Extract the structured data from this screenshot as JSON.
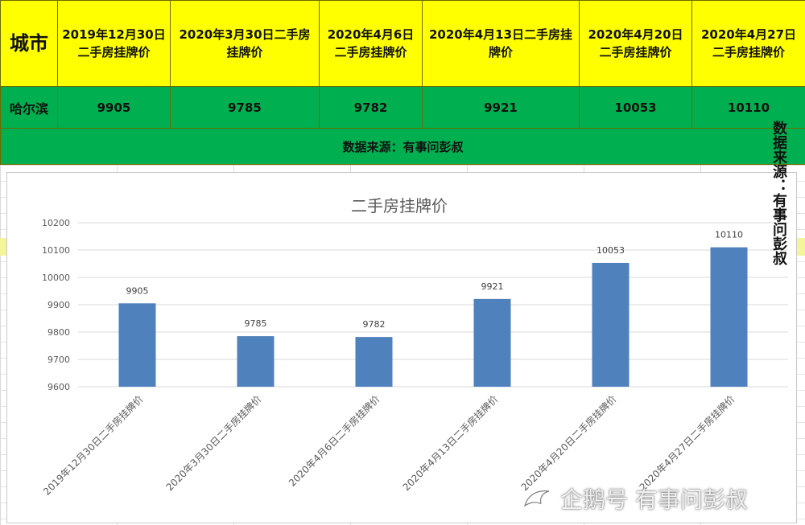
{
  "table": {
    "city_header": "城市",
    "date_headers": [
      "2019年12月30日二手房挂牌价",
      "2020年3月30日二手房挂牌价",
      "2020年4月6日二手房挂牌价",
      "2020年4月13日二手房挂牌价",
      "2020年4月20日二手房挂牌价",
      "2020年4月27日二手房挂牌价"
    ],
    "city": "哈尔滨",
    "prices": [
      "9905",
      "9785",
      "9782",
      "9921",
      "10053",
      "10110"
    ],
    "source": "数据来源：有事问彭叔"
  },
  "side_note": "数据来源：有事问彭叔",
  "watermark": "企鹅号 有事问彭叔",
  "colors": {
    "header_bg": "#ffff00",
    "row_bg": "#00b050",
    "bar": "#4f81bd"
  },
  "chart_data": {
    "type": "bar",
    "title": "二手房挂牌价",
    "categories": [
      "2019年12月30日二手房挂牌价",
      "2020年3月30日二手房挂牌价",
      "2020年4月6日二手房挂牌价",
      "2020年4月13日二手房挂牌价",
      "2020年4月20日二手房挂牌价",
      "2020年4月27日二手房挂牌价"
    ],
    "values": [
      9905,
      9785,
      9782,
      9921,
      10053,
      10110
    ],
    "data_labels": true,
    "ylim": [
      9600,
      10200
    ],
    "yticks": [
      9600,
      9700,
      9800,
      9900,
      10000,
      10100,
      10200
    ],
    "xlabel": "",
    "ylabel": "",
    "grid": "horizontal",
    "legend": "none"
  }
}
